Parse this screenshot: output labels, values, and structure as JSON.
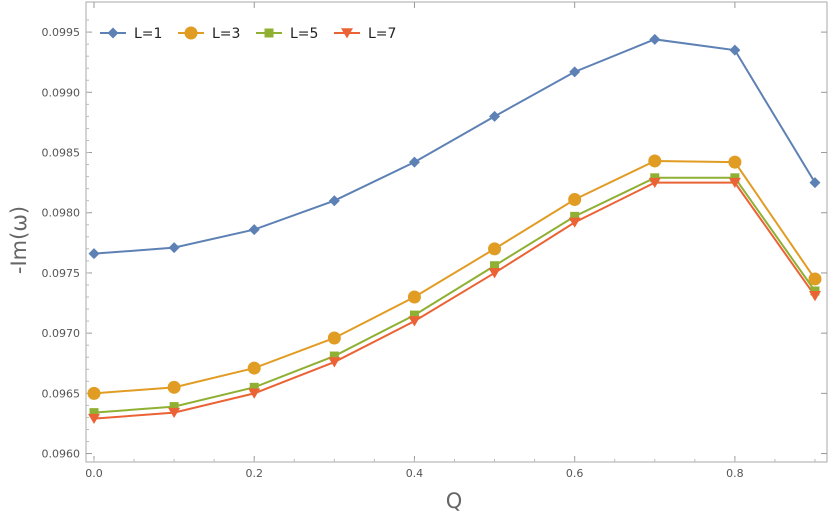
{
  "chart_data": {
    "type": "line",
    "title": "",
    "xlabel": "Q",
    "ylabel": "-Im(ω)",
    "x": [
      0.0,
      0.1,
      0.2,
      0.3,
      0.4,
      0.5,
      0.6,
      0.7,
      0.8,
      0.9
    ],
    "xlim": [
      -0.01,
      0.915
    ],
    "ylim": [
      0.09593,
      0.09975
    ],
    "xticks": [
      0.0,
      0.2,
      0.4,
      0.6,
      0.8
    ],
    "xtick_labels": [
      "0.0",
      "0.2",
      "0.4",
      "0.6",
      "0.8"
    ],
    "yticks": [
      0.096,
      0.0965,
      0.097,
      0.0975,
      0.098,
      0.0985,
      0.099,
      0.0995
    ],
    "ytick_labels": [
      "0.0960",
      "0.0965",
      "0.0970",
      "0.0975",
      "0.0980",
      "0.0985",
      "0.0990",
      "0.0995"
    ],
    "grid": false,
    "legend_position": "top-left",
    "series": [
      {
        "name": "L=1",
        "color": "#5E81B5",
        "marker": "diamond",
        "values": [
          0.09766,
          0.09771,
          0.09786,
          0.0981,
          0.09842,
          0.0988,
          0.09917,
          0.09944,
          0.09935,
          0.09825
        ]
      },
      {
        "name": "L=3",
        "color": "#E19C24",
        "marker": "circle",
        "values": [
          0.0965,
          0.09655,
          0.09671,
          0.09696,
          0.0973,
          0.0977,
          0.09811,
          0.09843,
          0.09842,
          0.09745
        ]
      },
      {
        "name": "L=5",
        "color": "#8FB032",
        "marker": "square",
        "values": [
          0.09634,
          0.09639,
          0.09655,
          0.09681,
          0.09715,
          0.09756,
          0.09797,
          0.09829,
          0.09829,
          0.09735
        ]
      },
      {
        "name": "L=7",
        "color": "#EB6235",
        "marker": "triangle-down",
        "values": [
          0.09629,
          0.09634,
          0.0965,
          0.09676,
          0.0971,
          0.0975,
          0.09792,
          0.09825,
          0.09825,
          0.09731
        ]
      }
    ]
  }
}
